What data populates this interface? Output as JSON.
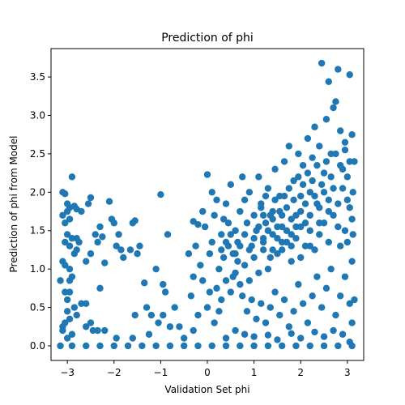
{
  "chart_data": {
    "type": "scatter",
    "title": "Prediction of phi",
    "xlabel": "Validation Set phi",
    "ylabel": "Prediction of phi from Model",
    "xlim": [
      -3.35,
      3.35
    ],
    "ylim": [
      -0.19,
      3.87
    ],
    "xticks": [
      -3,
      -2,
      -1,
      0,
      1,
      2,
      3
    ],
    "yticks": [
      0.0,
      0.5,
      1.0,
      1.5,
      2.0,
      2.5,
      3.0,
      3.5
    ],
    "xtick_labels": [
      "−3",
      "−2",
      "−1",
      "0",
      "1",
      "2",
      "3"
    ],
    "ytick_labels": [
      "0.0",
      "0.5",
      "1.0",
      "1.5",
      "2.0",
      "2.5",
      "3.0",
      "3.5"
    ],
    "grid": false,
    "color": "#1f77b4",
    "series": [
      {
        "points": [
          [
            -3.1,
            2.0
          ],
          [
            -3.05,
            1.98
          ],
          [
            -3.0,
            1.85
          ],
          [
            -2.95,
            1.8
          ],
          [
            -2.9,
            2.2
          ],
          [
            -3.1,
            1.7
          ],
          [
            -3.0,
            1.75
          ],
          [
            -2.85,
            1.82
          ],
          [
            -3.05,
            1.6
          ],
          [
            -2.95,
            1.65
          ],
          [
            -2.8,
            1.78
          ],
          [
            -2.7,
            1.75
          ],
          [
            -3.0,
            1.45
          ],
          [
            -2.9,
            1.4
          ],
          [
            -3.05,
            1.35
          ],
          [
            -2.95,
            1.3
          ],
          [
            -2.8,
            1.4
          ],
          [
            -2.75,
            1.35
          ],
          [
            -2.85,
            1.2
          ],
          [
            -2.8,
            1.25
          ],
          [
            -3.1,
            1.1
          ],
          [
            -3.05,
            1.05
          ],
          [
            -2.95,
            1.0
          ],
          [
            -2.9,
            0.9
          ],
          [
            -3.15,
            0.85
          ],
          [
            -2.95,
            0.85
          ],
          [
            -3.05,
            0.7
          ],
          [
            -2.95,
            0.7
          ],
          [
            -3.0,
            0.6
          ],
          [
            -2.7,
            0.55
          ],
          [
            -2.85,
            0.5
          ],
          [
            -3.0,
            0.45
          ],
          [
            -2.8,
            0.4
          ],
          [
            -2.6,
            0.55
          ],
          [
            -3.05,
            0.3
          ],
          [
            -3.1,
            0.25
          ],
          [
            -2.95,
            0.35
          ],
          [
            -3.1,
            0.2
          ],
          [
            -2.9,
            0.15
          ],
          [
            -3.0,
            0.1
          ],
          [
            -2.6,
            0.25
          ],
          [
            -2.5,
            0.3
          ],
          [
            -2.6,
            1.1
          ],
          [
            -2.55,
            1.85
          ],
          [
            -2.5,
            1.93
          ],
          [
            -2.4,
            1.45
          ],
          [
            -2.35,
            1.35
          ],
          [
            -2.5,
            1.2
          ],
          [
            -2.3,
            1.55
          ],
          [
            -2.25,
            1.42
          ],
          [
            -2.2,
            1.08
          ],
          [
            -2.3,
            0.75
          ],
          [
            -2.45,
            0.2
          ],
          [
            -2.35,
            0.2
          ],
          [
            -2.1,
            1.88
          ],
          [
            -2.05,
            1.65
          ],
          [
            -2.0,
            1.6
          ],
          [
            -1.95,
            1.3
          ],
          [
            -1.9,
            1.45
          ],
          [
            -1.85,
            1.25
          ],
          [
            -1.8,
            1.15
          ],
          [
            -1.65,
            1.25
          ],
          [
            -1.6,
            1.6
          ],
          [
            -1.55,
            1.63
          ],
          [
            -1.5,
            1.2
          ],
          [
            -1.45,
            1.3
          ],
          [
            -1.35,
            0.82
          ],
          [
            -1.3,
            0.5
          ],
          [
            -1.25,
            0.15
          ],
          [
            -1.2,
            0.4
          ],
          [
            -1.1,
            1.0
          ],
          [
            -1.0,
            1.97
          ],
          [
            -0.95,
            0.8
          ],
          [
            -0.9,
            0.7
          ],
          [
            -0.85,
            1.45
          ],
          [
            -1.05,
            0.3
          ],
          [
            -0.95,
            0.4
          ],
          [
            -0.8,
            0.25
          ],
          [
            -1.55,
            0.4
          ],
          [
            -1.6,
            0.1
          ],
          [
            -1.95,
            0.1
          ],
          [
            -2.2,
            0.2
          ],
          [
            -0.7,
            0.5
          ],
          [
            -0.6,
            0.25
          ],
          [
            -0.5,
            0.1
          ],
          [
            -0.4,
            1.2
          ],
          [
            -0.35,
            0.65
          ],
          [
            -0.3,
            0.9
          ],
          [
            -0.25,
            1.3
          ],
          [
            -0.3,
            1.62
          ],
          [
            -0.2,
            1.58
          ],
          [
            -0.1,
            1.75
          ],
          [
            0.0,
            2.23
          ],
          [
            -0.05,
            1.55
          ],
          [
            0.1,
            2.0
          ],
          [
            0.15,
            1.7
          ],
          [
            0.2,
            1.9
          ],
          [
            0.05,
            1.2
          ],
          [
            0.1,
            1.35
          ],
          [
            -0.15,
            1.05
          ],
          [
            -0.1,
            0.85
          ],
          [
            0.0,
            0.5
          ],
          [
            0.05,
            0.7
          ],
          [
            -0.2,
            0.4
          ],
          [
            0.15,
            0.3
          ],
          [
            0.25,
            0.45
          ],
          [
            -0.3,
            0.2
          ],
          [
            0.3,
            1.45
          ],
          [
            0.35,
            1.65
          ],
          [
            0.4,
            1.85
          ],
          [
            0.45,
            1.6
          ],
          [
            0.5,
            2.1
          ],
          [
            0.55,
            1.2
          ],
          [
            0.6,
            1.5
          ],
          [
            0.65,
            1.35
          ],
          [
            0.7,
            1.75
          ],
          [
            0.75,
            2.2
          ],
          [
            0.8,
            1.9
          ],
          [
            0.85,
            1.6
          ],
          [
            0.9,
            2.0
          ],
          [
            0.95,
            1.3
          ],
          [
            1.0,
            1.7
          ],
          [
            1.05,
            1.5
          ],
          [
            1.1,
            2.2
          ],
          [
            1.15,
            1.85
          ],
          [
            1.2,
            1.4
          ],
          [
            1.25,
            1.6
          ],
          [
            1.3,
            2.05
          ],
          [
            1.35,
            1.15
          ],
          [
            1.4,
            1.75
          ],
          [
            1.45,
            2.3
          ],
          [
            1.5,
            1.55
          ],
          [
            1.55,
            1.95
          ],
          [
            1.6,
            1.25
          ],
          [
            1.65,
            2.4
          ],
          [
            1.7,
            1.8
          ],
          [
            1.75,
            2.6
          ],
          [
            1.8,
            1.45
          ],
          [
            1.85,
            2.15
          ],
          [
            1.9,
            1.7
          ],
          [
            1.95,
            2.5
          ],
          [
            2.0,
            1.95
          ],
          [
            2.05,
            2.35
          ],
          [
            2.1,
            1.6
          ],
          [
            2.15,
            2.7
          ],
          [
            2.2,
            2.0
          ],
          [
            2.25,
            2.45
          ],
          [
            2.3,
            2.85
          ],
          [
            2.35,
            1.85
          ],
          [
            2.4,
            2.6
          ],
          [
            2.45,
            3.68
          ],
          [
            2.5,
            2.25
          ],
          [
            2.55,
            2.95
          ],
          [
            2.6,
            3.44
          ],
          [
            2.65,
            2.5
          ],
          [
            2.7,
            3.1
          ],
          [
            2.75,
            3.18
          ],
          [
            2.8,
            3.6
          ],
          [
            2.85,
            2.8
          ],
          [
            2.9,
            2.3
          ],
          [
            2.95,
            2.65
          ],
          [
            3.0,
            2.2
          ],
          [
            3.05,
            3.53
          ],
          [
            3.1,
            2.75
          ],
          [
            3.15,
            2.4
          ],
          [
            3.12,
            2.0
          ],
          [
            3.05,
            1.8
          ],
          [
            2.95,
            1.5
          ],
          [
            2.85,
            1.3
          ],
          [
            2.7,
            1.7
          ],
          [
            2.6,
            1.9
          ],
          [
            2.5,
            1.6
          ],
          [
            2.4,
            1.45
          ],
          [
            2.3,
            1.25
          ],
          [
            2.2,
            1.5
          ],
          [
            2.1,
            1.3
          ],
          [
            2.0,
            1.15
          ],
          [
            1.9,
            1.4
          ],
          [
            1.8,
            1.1
          ],
          [
            1.7,
            1.35
          ],
          [
            1.6,
            1.55
          ],
          [
            1.5,
            1.2
          ],
          [
            1.4,
            1.45
          ],
          [
            1.3,
            1.0
          ],
          [
            1.2,
            1.25
          ],
          [
            1.1,
            0.95
          ],
          [
            1.0,
            1.15
          ],
          [
            0.9,
            0.85
          ],
          [
            0.8,
            1.05
          ],
          [
            0.7,
            0.8
          ],
          [
            0.6,
            0.95
          ],
          [
            0.5,
            0.7
          ],
          [
            0.4,
            0.85
          ],
          [
            0.3,
            0.6
          ],
          [
            0.2,
            0.75
          ],
          [
            0.25,
            1.0
          ],
          [
            0.35,
            1.15
          ],
          [
            0.45,
            1.3
          ],
          [
            0.55,
            0.9
          ],
          [
            0.65,
            1.1
          ],
          [
            0.75,
            0.65
          ],
          [
            0.85,
            0.45
          ],
          [
            0.95,
            0.6
          ],
          [
            1.05,
            0.35
          ],
          [
            1.15,
            0.55
          ],
          [
            1.25,
            0.3
          ],
          [
            1.35,
            0.5
          ],
          [
            1.45,
            0.7
          ],
          [
            1.55,
            0.4
          ],
          [
            1.65,
            0.6
          ],
          [
            1.75,
            0.25
          ],
          [
            1.85,
            0.45
          ],
          [
            1.95,
            0.8
          ],
          [
            2.05,
            0.55
          ],
          [
            2.15,
            0.3
          ],
          [
            2.25,
            0.65
          ],
          [
            2.35,
            0.9
          ],
          [
            2.45,
            0.5
          ],
          [
            2.55,
            0.75
          ],
          [
            2.65,
            1.0
          ],
          [
            2.75,
            0.4
          ],
          [
            2.85,
            0.65
          ],
          [
            2.95,
            0.9
          ],
          [
            3.05,
            0.55
          ],
          [
            3.1,
            1.1
          ],
          [
            3.15,
            0.6
          ],
          [
            3.1,
            0.3
          ],
          [
            3.05,
            0.05
          ],
          [
            2.9,
            0.15
          ],
          [
            2.7,
            0.2
          ],
          [
            2.5,
            0.12
          ],
          [
            2.3,
            0.18
          ],
          [
            2.0,
            0.1
          ],
          [
            1.8,
            0.16
          ],
          [
            1.5,
            0.08
          ],
          [
            1.3,
            0.14
          ],
          [
            1.0,
            0.12
          ],
          [
            0.8,
            0.15
          ],
          [
            0.6,
            0.2
          ],
          [
            0.4,
            0.1
          ],
          [
            1.15,
            1.8
          ],
          [
            1.25,
            1.95
          ],
          [
            1.35,
            1.7
          ],
          [
            1.45,
            1.9
          ],
          [
            1.55,
            1.75
          ],
          [
            1.65,
            1.95
          ],
          [
            1.75,
            2.05
          ],
          [
            1.85,
            1.9
          ],
          [
            1.95,
            2.2
          ],
          [
            2.05,
            2.1
          ],
          [
            2.15,
            2.25
          ],
          [
            2.25,
            2.15
          ],
          [
            2.35,
            2.35
          ],
          [
            2.45,
            2.1
          ],
          [
            2.55,
            2.4
          ],
          [
            2.65,
            2.2
          ],
          [
            2.75,
            2.5
          ],
          [
            2.85,
            2.35
          ],
          [
            2.95,
            2.55
          ],
          [
            3.05,
            2.4
          ],
          [
            1.1,
            1.55
          ],
          [
            1.2,
            1.7
          ],
          [
            1.3,
            1.5
          ],
          [
            1.4,
            1.65
          ],
          [
            1.5,
            1.4
          ],
          [
            1.6,
            1.7
          ],
          [
            1.7,
            1.5
          ],
          [
            1.8,
            1.65
          ],
          [
            1.9,
            1.55
          ],
          [
            2.0,
            1.75
          ],
          [
            2.1,
            1.85
          ],
          [
            2.2,
            1.7
          ],
          [
            2.3,
            1.95
          ],
          [
            2.4,
            1.8
          ],
          [
            2.5,
            2.0
          ],
          [
            2.6,
            1.75
          ],
          [
            2.7,
            2.05
          ],
          [
            2.8,
            1.85
          ],
          [
            2.9,
            2.05
          ],
          [
            3.0,
            1.9
          ],
          [
            3.1,
            1.65
          ],
          [
            3.12,
            1.45
          ],
          [
            3.0,
            1.35
          ],
          [
            2.8,
            1.55
          ],
          [
            2.6,
            1.35
          ],
          [
            2.4,
            1.6
          ],
          [
            2.2,
            1.3
          ],
          [
            2.0,
            1.55
          ],
          [
            1.8,
            1.3
          ],
          [
            1.6,
            1.35
          ],
          [
            1.4,
            1.25
          ],
          [
            1.2,
            1.35
          ],
          [
            1.0,
            1.4
          ],
          [
            0.9,
            1.25
          ],
          [
            0.8,
            1.45
          ],
          [
            0.7,
            1.3
          ],
          [
            0.6,
            1.2
          ],
          [
            0.5,
            1.45
          ],
          [
            0.4,
            1.35
          ],
          [
            0.3,
            1.25
          ],
          [
            -3.15,
            0.0
          ],
          [
            -2.9,
            0.0
          ],
          [
            -2.6,
            0.0
          ],
          [
            -2.3,
            0.0
          ],
          [
            -2.0,
            0.0
          ],
          [
            -1.7,
            0.0
          ],
          [
            -1.4,
            0.0
          ],
          [
            -1.1,
            0.0
          ],
          [
            -0.8,
            0.0
          ],
          [
            -0.5,
            0.0
          ],
          [
            -0.2,
            0.0
          ],
          [
            0.1,
            0.0
          ],
          [
            0.4,
            0.0
          ],
          [
            0.7,
            0.0
          ],
          [
            1.0,
            0.0
          ],
          [
            1.3,
            0.0
          ],
          [
            1.6,
            0.0
          ],
          [
            1.9,
            0.0
          ],
          [
            2.2,
            0.0
          ],
          [
            2.5,
            0.0
          ],
          [
            2.8,
            0.0
          ],
          [
            3.1,
            0.0
          ]
        ]
      }
    ]
  }
}
